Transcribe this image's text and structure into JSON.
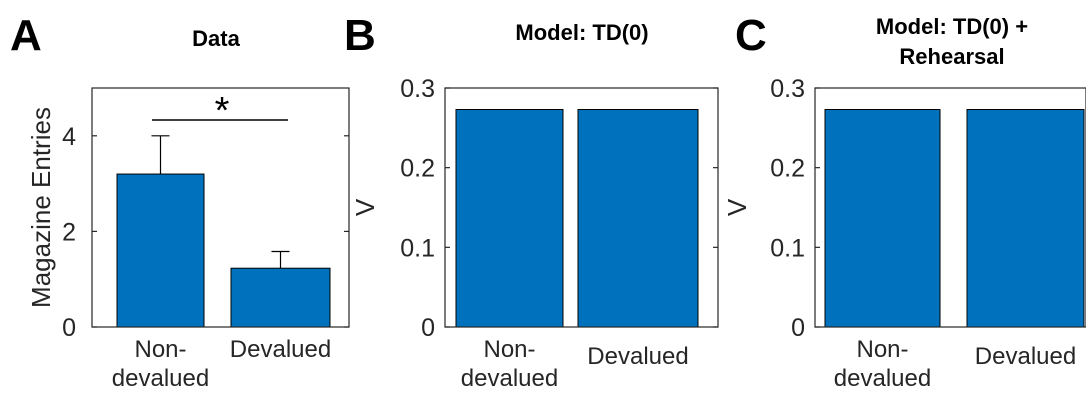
{
  "chart_data": [
    {
      "panel": "A",
      "type": "bar",
      "title": "Data",
      "ylabel": "Magazine Entries",
      "ylim": [
        0,
        5
      ],
      "yticks": [
        0,
        2,
        4
      ],
      "categories": [
        [
          "Non-",
          "devalued"
        ],
        [
          "Devalued"
        ]
      ],
      "values": [
        3.2,
        1.23
      ],
      "errors": [
        0.8,
        0.35
      ],
      "significance": "*",
      "bar_color": "#0072BD"
    },
    {
      "panel": "B",
      "type": "bar",
      "title": "Model: TD(0)",
      "ylabel": "V",
      "ylim": [
        0,
        0.3
      ],
      "yticks": [
        "0",
        "0.1",
        "0.2",
        "0.3"
      ],
      "categories": [
        [
          "Non-",
          "devalued"
        ],
        [
          "Devalued"
        ]
      ],
      "values": [
        0.273,
        0.273
      ],
      "bar_color": "#0072BD"
    },
    {
      "panel": "C",
      "type": "bar",
      "title": [
        "Model: TD(0) +",
        "Rehearsal"
      ],
      "ylabel": "V",
      "ylim": [
        0,
        0.3
      ],
      "yticks": [
        "0",
        "0.1",
        "0.2",
        "0.3"
      ],
      "categories": [
        [
          "Non-",
          "devalued"
        ],
        [
          "Devalued"
        ]
      ],
      "values": [
        0.273,
        0.273
      ],
      "bar_color": "#0072BD"
    }
  ]
}
